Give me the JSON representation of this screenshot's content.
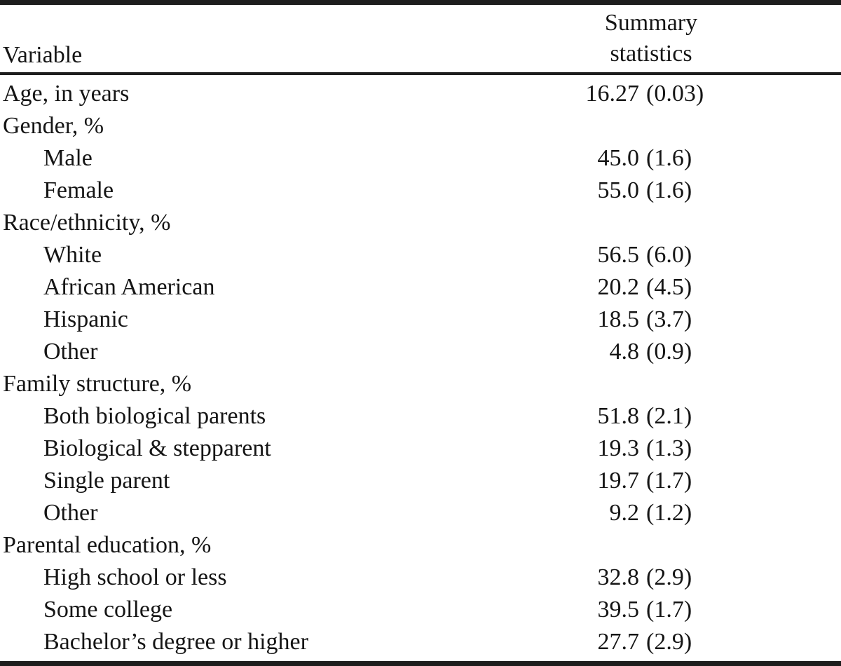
{
  "page": {
    "background_color": "#ffffff",
    "text_color": "#151515",
    "rule_color": "#1d1d1d"
  },
  "table": {
    "header": {
      "variable": "Variable",
      "summary_line1": "Summary",
      "summary_line2": "statistics"
    },
    "rows": [
      {
        "label": "Age, in years",
        "indent": false,
        "stat": "16.27",
        "se": "(0.03)"
      },
      {
        "label": "Gender, %",
        "indent": false,
        "stat": "",
        "se": ""
      },
      {
        "label": "Male",
        "indent": true,
        "stat": "45.0",
        "se": "(1.6)"
      },
      {
        "label": "Female",
        "indent": true,
        "stat": "55.0",
        "se": "(1.6)"
      },
      {
        "label": "Race/ethnicity, %",
        "indent": false,
        "stat": "",
        "se": ""
      },
      {
        "label": "White",
        "indent": true,
        "stat": "56.5",
        "se": "(6.0)"
      },
      {
        "label": "African American",
        "indent": true,
        "stat": "20.2",
        "se": "(4.5)"
      },
      {
        "label": "Hispanic",
        "indent": true,
        "stat": "18.5",
        "se": "(3.7)"
      },
      {
        "label": "Other",
        "indent": true,
        "stat": "4.8",
        "se": "(0.9)"
      },
      {
        "label": "Family structure, %",
        "indent": false,
        "stat": "",
        "se": ""
      },
      {
        "label": "Both biological parents",
        "indent": true,
        "stat": "51.8",
        "se": "(2.1)"
      },
      {
        "label": "Biological & stepparent",
        "indent": true,
        "stat": "19.3",
        "se": "(1.3)"
      },
      {
        "label": "Single parent",
        "indent": true,
        "stat": "19.7",
        "se": "(1.7)"
      },
      {
        "label": "Other",
        "indent": true,
        "stat": "9.2",
        "se": "(1.2)"
      },
      {
        "label": "Parental education, %",
        "indent": false,
        "stat": "",
        "se": ""
      },
      {
        "label": "High school or less",
        "indent": true,
        "stat": "32.8",
        "se": "(2.9)"
      },
      {
        "label": "Some college",
        "indent": true,
        "stat": "39.5",
        "se": "(1.7)"
      },
      {
        "label": "Bachelor’s degree or higher",
        "indent": true,
        "stat": "27.7",
        "se": "(2.9)"
      }
    ]
  }
}
